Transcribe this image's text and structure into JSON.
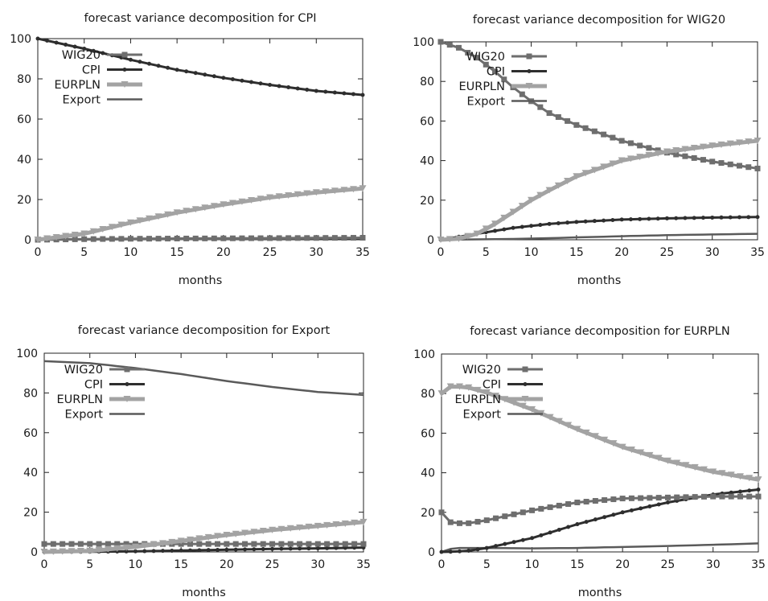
{
  "chart_data": [
    {
      "type": "line",
      "title": "forecast variance decomposition for CPI",
      "xlabel": "months",
      "ylabel": "",
      "xlim": [
        0,
        35
      ],
      "ylim": [
        0,
        100
      ],
      "xticks": [
        "0",
        "5",
        "10",
        "15",
        "20",
        "25",
        "30",
        "35"
      ],
      "yticks": [
        "0",
        "20",
        "40",
        "60",
        "80",
        "100"
      ],
      "grid": false,
      "legend": "top-left",
      "x": [
        0,
        5,
        10,
        15,
        20,
        25,
        30,
        35
      ],
      "series": [
        {
          "name": "WIG20",
          "values": [
            0,
            0.3,
            0.5,
            0.6,
            0.7,
            0.8,
            0.9,
            1.0
          ]
        },
        {
          "name": "CPI",
          "values": [
            100,
            95,
            89.5,
            84.5,
            80.5,
            77,
            74,
            72
          ]
        },
        {
          "name": "EURPLN",
          "values": [
            0,
            3,
            8.5,
            13.5,
            17.5,
            21,
            23.5,
            25.5
          ]
        },
        {
          "name": "Export",
          "values": [
            0,
            0.1,
            0.2,
            0.3,
            0.4,
            0.5,
            0.6,
            0.7
          ]
        }
      ]
    },
    {
      "type": "line",
      "title": "forecast variance decomposition for WIG20",
      "xlabel": "months",
      "ylabel": "",
      "xlim": [
        0,
        35
      ],
      "ylim": [
        0,
        100
      ],
      "xticks": [
        "0",
        "5",
        "10",
        "15",
        "20",
        "25",
        "30",
        "35"
      ],
      "yticks": [
        "0",
        "20",
        "40",
        "60",
        "80",
        "100"
      ],
      "grid": false,
      "legend": "top-left",
      "x": [
        0,
        2,
        4,
        6,
        8,
        10,
        12,
        15,
        20,
        25,
        30,
        35
      ],
      "series": [
        {
          "name": "WIG20",
          "values": [
            100,
            97,
            92,
            85,
            77,
            70,
            64,
            58,
            50,
            44,
            39.5,
            36
          ]
        },
        {
          "name": "CPI",
          "values": [
            0,
            1.5,
            3,
            4.5,
            6,
            7,
            8,
            9,
            10.2,
            10.8,
            11.2,
            11.5
          ]
        },
        {
          "name": "EURPLN",
          "values": [
            0,
            0.5,
            3,
            8,
            14,
            20,
            25,
            32,
            40,
            44.5,
            47.5,
            50
          ]
        },
        {
          "name": "Export",
          "values": [
            0,
            0.1,
            0.2,
            0.3,
            0.4,
            0.6,
            0.8,
            1.2,
            1.8,
            2.3,
            2.7,
            3.0
          ]
        }
      ]
    },
    {
      "type": "line",
      "title": "forecast variance decomposition for Export",
      "xlabel": "months",
      "ylabel": "",
      "xlim": [
        0,
        35
      ],
      "ylim": [
        0,
        100
      ],
      "xticks": [
        "0",
        "5",
        "10",
        "15",
        "20",
        "25",
        "30",
        "35"
      ],
      "yticks": [
        "0",
        "20",
        "40",
        "60",
        "80",
        "100"
      ],
      "grid": false,
      "legend": "top-left",
      "x": [
        0,
        5,
        10,
        15,
        20,
        25,
        30,
        35
      ],
      "series": [
        {
          "name": "WIG20",
          "values": [
            4,
            4,
            4,
            4,
            4,
            4,
            4,
            4
          ]
        },
        {
          "name": "CPI",
          "values": [
            0,
            0.1,
            0.3,
            0.7,
            1.1,
            1.5,
            1.8,
            2.2
          ]
        },
        {
          "name": "EURPLN",
          "values": [
            0,
            0.5,
            2.5,
            5.5,
            8.5,
            11,
            13,
            15
          ]
        },
        {
          "name": "Export",
          "values": [
            96,
            95,
            92.5,
            89.5,
            86,
            83,
            80.5,
            79
          ]
        }
      ]
    },
    {
      "type": "line",
      "title": "forecast variance decomposition for EURPLN",
      "xlabel": "months",
      "ylabel": "",
      "xlim": [
        0,
        35
      ],
      "ylim": [
        0,
        100
      ],
      "xticks": [
        "0",
        "5",
        "10",
        "15",
        "20",
        "25",
        "30",
        "35"
      ],
      "yticks": [
        "0",
        "20",
        "40",
        "60",
        "80",
        "100"
      ],
      "grid": false,
      "legend": "top-left",
      "x": [
        0,
        1,
        2,
        3,
        5,
        10,
        15,
        20,
        25,
        30,
        35
      ],
      "series": [
        {
          "name": "WIG20",
          "values": [
            20,
            15,
            14.5,
            14.5,
            16,
            21,
            25,
            27,
            27.5,
            28,
            28
          ]
        },
        {
          "name": "CPI",
          "values": [
            0,
            0.1,
            0.3,
            0.6,
            2,
            7,
            14,
            20,
            25,
            29,
            31.5
          ]
        },
        {
          "name": "EURPLN",
          "values": [
            80,
            83.5,
            83.5,
            83,
            80.5,
            72,
            62,
            53,
            46,
            40.5,
            36.5
          ]
        },
        {
          "name": "Export",
          "values": [
            0,
            1.5,
            2,
            2,
            2,
            1.8,
            2,
            2.5,
            3,
            3.6,
            4.3
          ]
        }
      ]
    }
  ]
}
